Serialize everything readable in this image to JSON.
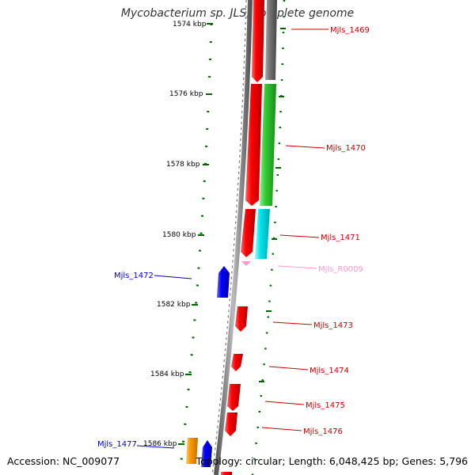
{
  "title": "Mycobacterium sp. JLS, complete genome",
  "scale": {
    "ticks": [
      {
        "label": "1574 kbp"
      },
      {
        "label": "1576 kbp"
      },
      {
        "label": "1578 kbp"
      },
      {
        "label": "1580 kbp"
      },
      {
        "label": "1582 kbp"
      },
      {
        "label": "1584 kbp"
      },
      {
        "label": "1586 kbp"
      }
    ]
  },
  "genes": [
    {
      "name": "Mjls_1469",
      "strand": "forward",
      "color": "#cc0000"
    },
    {
      "name": "Mjls_1470",
      "strand": "forward",
      "color": "#cc0000"
    },
    {
      "name": "Mjls_1471",
      "strand": "forward",
      "color": "#cc0000"
    },
    {
      "name": "Mjls_R0009",
      "strand": "forward",
      "color": "#ff99cc"
    },
    {
      "name": "Mjls_1472",
      "strand": "reverse",
      "color": "#0000cc"
    },
    {
      "name": "Mjls_1473",
      "strand": "forward",
      "color": "#cc0000"
    },
    {
      "name": "Mjls_1474",
      "strand": "forward",
      "color": "#cc0000"
    },
    {
      "name": "Mjls_1475",
      "strand": "forward",
      "color": "#cc0000"
    },
    {
      "name": "Mjls_1476",
      "strand": "forward",
      "color": "#cc0000"
    },
    {
      "name": "Mjls_1477",
      "strand": "reverse",
      "color": "#0000cc"
    }
  ],
  "footer": {
    "accession": "Accession: NC_009077",
    "summary": "Topology: circular; Length: 6,048,425 bp; Genes: 5,796"
  },
  "colors": {
    "cds_forward": "#ff0000",
    "cds_reverse": "#0000ff",
    "cog_green": "#33cc33",
    "cog_cyan": "#00e5ee",
    "cog_grey": "#777777",
    "cog_orange": "#ff9900",
    "rna": "#ff99cc",
    "backbone": "#888888",
    "scale": "#006600"
  }
}
